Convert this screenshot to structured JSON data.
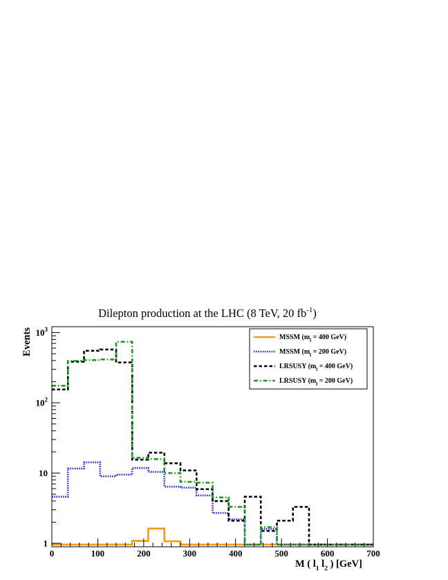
{
  "chart_data": {
    "type": "histogram",
    "title": "Dilepton production at the LHC (8 TeV, 20 fb",
    "title_sup": "-1",
    "title_close": ")",
    "ylabel": "Events",
    "xlabel": "M ( l",
    "xlabel_sub1": "1",
    "xlabel_mid": " l",
    "xlabel_sub2": "2",
    "xlabel_end": " ) [GeV]",
    "x_range": [
      0,
      700
    ],
    "y_range": [
      1,
      1000
    ],
    "y_scale": "log",
    "x_tick_labels": [
      "0",
      "100",
      "200",
      "300",
      "400",
      "500",
      "600",
      "700"
    ],
    "y_tick_labels": [
      {
        "value": 1,
        "base": "1",
        "sup": ""
      },
      {
        "value": 10,
        "base": "10",
        "sup": ""
      },
      {
        "value": 100,
        "base": "10",
        "sup": "2"
      },
      {
        "value": 1000,
        "base": "10",
        "sup": "3"
      }
    ],
    "bin_edges": [
      0,
      35,
      70,
      105,
      140,
      175,
      210,
      245,
      280,
      315,
      350,
      385,
      420,
      455,
      490,
      525,
      560,
      595,
      630,
      665,
      700
    ],
    "legend_position": "top-right",
    "series": [
      {
        "name": "MSSM (m",
        "sub": "l",
        "name_rest": " = 400 GeV)",
        "color": "#f59a0f",
        "style": "solid",
        "values": [
          0.96,
          0.96,
          0.96,
          0.96,
          0.96,
          1.08,
          1.62,
          1.07,
          0.96,
          0.96,
          0.96,
          0.96,
          0.96,
          0.96,
          0.96,
          0.96,
          0.96,
          0.96,
          0.96,
          0.96
        ]
      },
      {
        "name": "MSSM (m",
        "sub": "l",
        "name_rest": " = 200 GeV)",
        "color": "#2a2ad8",
        "style": "dotted",
        "values": [
          4.6,
          11.6,
          14.2,
          9.0,
          9.5,
          11.8,
          10.4,
          6.4,
          6.2,
          4.8,
          2.7,
          2.2,
          0.96,
          1.6,
          0.96,
          0.96,
          0.96,
          0.96,
          0.96,
          0.96
        ]
      },
      {
        "name": "LRSUSY (m",
        "sub": "l",
        "name_rest": " = 400 GeV)",
        "color": "#000000",
        "style": "dashed",
        "values": [
          155,
          385,
          550,
          575,
          375,
          15.5,
          19.5,
          13.8,
          10.9,
          5.9,
          4.0,
          2.1,
          4.6,
          1.5,
          2.1,
          3.3,
          0.96,
          0.96,
          0.96,
          0.96
        ]
      },
      {
        "name": "LRSUSY (m",
        "sub": "l",
        "name_rest": " = 200 GeV)",
        "color": "#149c14",
        "style": "dashdot",
        "values": [
          175,
          395,
          405,
          415,
          740,
          16.5,
          15.8,
          10.0,
          7.5,
          7.3,
          4.5,
          3.3,
          0.96,
          1.7,
          0.96,
          0.96,
          0.96,
          0.96,
          0.96,
          0.96
        ]
      }
    ]
  }
}
